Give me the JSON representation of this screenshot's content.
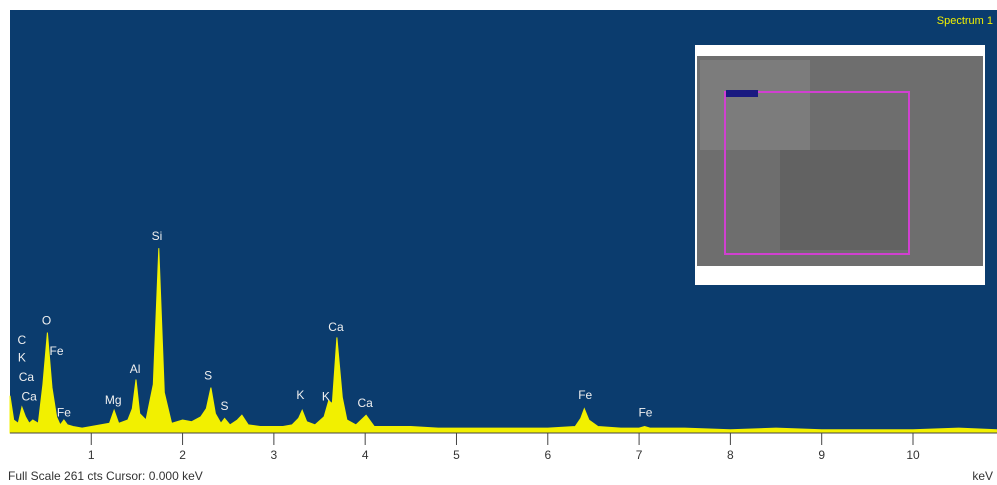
{
  "chart_data": {
    "type": "area",
    "title": "Spectrum 1",
    "footer": "Full Scale 261 cts  Cursor: 0.000 keV",
    "x_label": "keV",
    "color": "#f2f000",
    "background": "#0b3c6e",
    "xlim": [
      0.11,
      10.92
    ],
    "ylim": [
      0,
      261
    ],
    "xticks": [
      1,
      2,
      3,
      4,
      5,
      6,
      7,
      8,
      9,
      10
    ],
    "x": [
      0.11,
      0.15,
      0.2,
      0.24,
      0.28,
      0.32,
      0.36,
      0.42,
      0.47,
      0.52,
      0.57,
      0.62,
      0.66,
      0.7,
      0.74,
      0.8,
      0.9,
      1.0,
      1.1,
      1.2,
      1.25,
      1.3,
      1.4,
      1.45,
      1.49,
      1.53,
      1.6,
      1.68,
      1.74,
      1.8,
      1.88,
      2.0,
      2.1,
      2.2,
      2.26,
      2.31,
      2.36,
      2.42,
      2.46,
      2.52,
      2.6,
      2.65,
      2.72,
      2.85,
      3.0,
      3.1,
      3.2,
      3.27,
      3.31,
      3.36,
      3.45,
      3.55,
      3.6,
      3.64,
      3.69,
      3.75,
      3.8,
      3.9,
      4.01,
      4.1,
      4.3,
      4.5,
      4.8,
      5.2,
      5.6,
      6.0,
      6.3,
      6.36,
      6.4,
      6.45,
      6.55,
      6.8,
      7.0,
      7.06,
      7.12,
      7.5,
      8.0,
      8.5,
      9.0,
      9.5,
      10.0,
      10.5,
      10.92
    ],
    "values": [
      23,
      8,
      6,
      16,
      10,
      6,
      8,
      6,
      30,
      62,
      28,
      10,
      5,
      8,
      5,
      4,
      3,
      4,
      5,
      6,
      14,
      6,
      8,
      15,
      33,
      12,
      8,
      30,
      114,
      25,
      6,
      8,
      7,
      10,
      15,
      28,
      12,
      6,
      9,
      5,
      8,
      11,
      5,
      4,
      4,
      4,
      5,
      9,
      14,
      7,
      5,
      10,
      20,
      18,
      59,
      22,
      8,
      5,
      11,
      4,
      4,
      4,
      3,
      3,
      3,
      3,
      4,
      9,
      15,
      8,
      4,
      3,
      3,
      4,
      3,
      3,
      2,
      3,
      2,
      2,
      2,
      3,
      2
    ],
    "annotations": [
      {
        "text": "C",
        "x": 0.24,
        "y": 57
      },
      {
        "text": "K",
        "x": 0.24,
        "y": 46
      },
      {
        "text": "Ca",
        "x": 0.29,
        "y": 34
      },
      {
        "text": "Ca",
        "x": 0.32,
        "y": 22
      },
      {
        "text": "O",
        "x": 0.51,
        "y": 69
      },
      {
        "text": "Fe",
        "x": 0.62,
        "y": 50
      },
      {
        "text": "Fe",
        "x": 0.7,
        "y": 12
      },
      {
        "text": "Mg",
        "x": 1.24,
        "y": 20
      },
      {
        "text": "Al",
        "x": 1.48,
        "y": 39
      },
      {
        "text": "Si",
        "x": 1.72,
        "y": 121
      },
      {
        "text": "S",
        "x": 2.28,
        "y": 35
      },
      {
        "text": "S",
        "x": 2.46,
        "y": 16
      },
      {
        "text": "K",
        "x": 3.29,
        "y": 23
      },
      {
        "text": "K",
        "x": 3.57,
        "y": 22
      },
      {
        "text": "Ca",
        "x": 3.68,
        "y": 65
      },
      {
        "text": "Ca",
        "x": 4.0,
        "y": 18
      },
      {
        "text": "Fe",
        "x": 6.41,
        "y": 23
      },
      {
        "text": "Fe",
        "x": 7.07,
        "y": 12
      }
    ]
  }
}
